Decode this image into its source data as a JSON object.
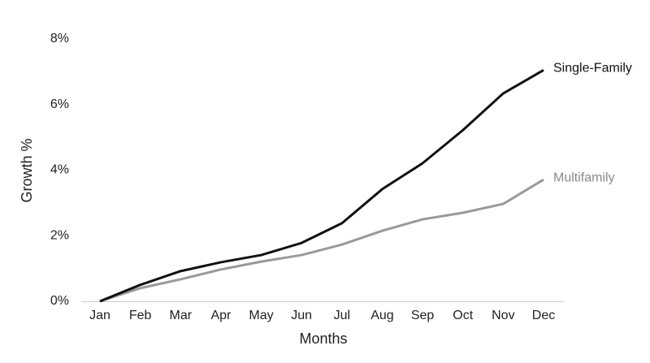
{
  "chart_data": {
    "type": "line",
    "categories": [
      "Jan",
      "Feb",
      "Mar",
      "Apr",
      "May",
      "Jun",
      "Jul",
      "Aug",
      "Sep",
      "Oct",
      "Nov",
      "Dec"
    ],
    "series": [
      {
        "name": "Single-Family",
        "color": "#111111",
        "values": [
          0,
          0.5,
          0.92,
          1.19,
          1.41,
          1.78,
          2.38,
          3.42,
          4.21,
          5.22,
          6.34,
          7.05
        ]
      },
      {
        "name": "Multifamily",
        "color": "#999999",
        "values": [
          0,
          0.4,
          0.67,
          0.97,
          1.21,
          1.41,
          1.73,
          2.15,
          2.5,
          2.7,
          2.97,
          3.71
        ]
      }
    ],
    "ylim": [
      0,
      8
    ],
    "yticks": [
      {
        "value": 0,
        "label": "0%"
      },
      {
        "value": 2,
        "label": "2%"
      },
      {
        "value": 4,
        "label": "4%"
      },
      {
        "value": 6,
        "label": "6%"
      },
      {
        "value": 8,
        "label": "8%"
      }
    ],
    "y_label": "Growth %",
    "x_label": "Months",
    "grid": false
  }
}
